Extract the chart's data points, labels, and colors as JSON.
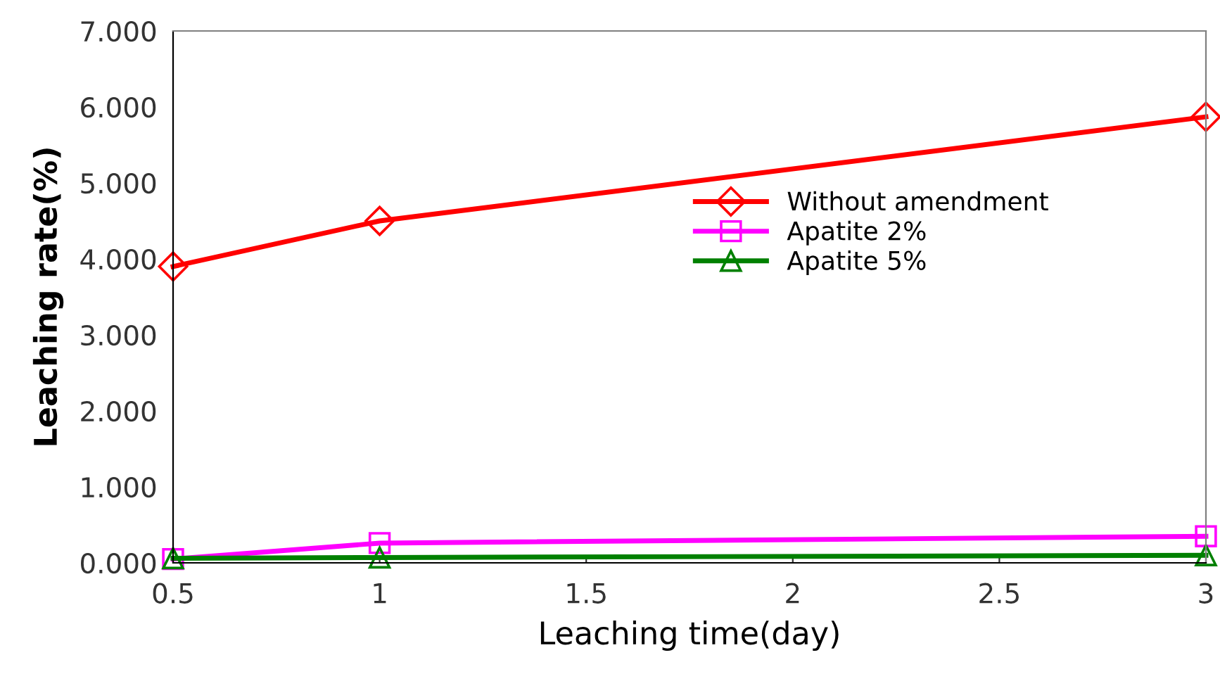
{
  "chart_data": {
    "type": "line",
    "xlabel": "Leaching time(day)",
    "ylabel": "Leaching rate(%)",
    "x": [
      0.5,
      1,
      3
    ],
    "series": [
      {
        "name": "Without amendment",
        "color": "#ff0000",
        "marker": "diamond",
        "values": [
          3.9,
          4.5,
          5.87
        ]
      },
      {
        "name": "Apatite 2%",
        "color": "#ff00ff",
        "marker": "square",
        "values": [
          0.05,
          0.26,
          0.35
        ]
      },
      {
        "name": "Apatite 5%",
        "color": "#008000",
        "marker": "triangle",
        "values": [
          0.06,
          0.07,
          0.1
        ]
      }
    ],
    "xlim": [
      0.5,
      3
    ],
    "xticks": [
      0.5,
      1,
      1.5,
      2,
      2.5,
      3
    ],
    "ylim": [
      0,
      7
    ],
    "yticks": [
      {
        "value": 0,
        "label": "0.000"
      },
      {
        "value": 1,
        "label": "1.000"
      },
      {
        "value": 2,
        "label": "2.000"
      },
      {
        "value": 3,
        "label": "3.000"
      },
      {
        "value": 4,
        "label": "4.000"
      },
      {
        "value": 5,
        "label": "5.000"
      },
      {
        "value": 6,
        "label": "6.000"
      },
      {
        "value": 7,
        "label": "7.000"
      }
    ],
    "grid": false,
    "legend": "right",
    "line_style": "solid"
  }
}
